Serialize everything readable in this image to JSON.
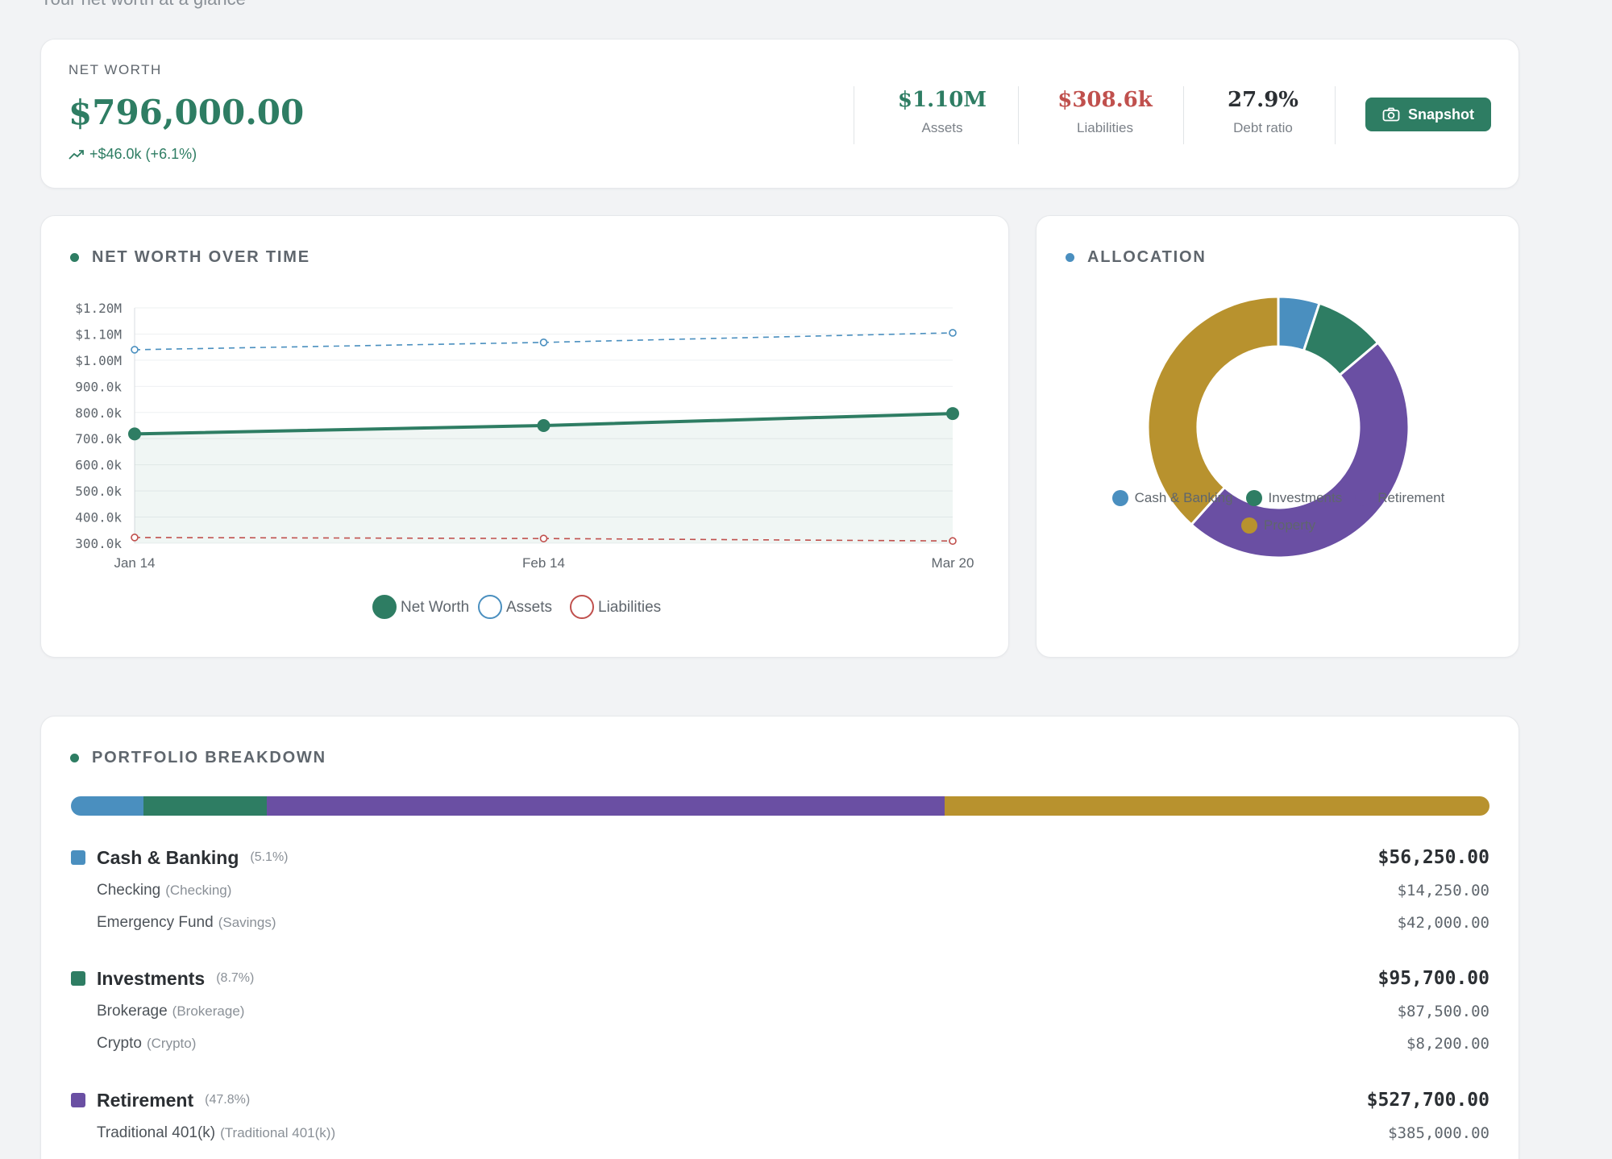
{
  "header": {
    "subtitle": "Your net worth at a glance"
  },
  "summary": {
    "label": "NET WORTH",
    "value": "$796,000.00",
    "change": "+$46.0k (+6.1%)",
    "stats": [
      {
        "value": "$1.10M",
        "label": "Assets",
        "color": "#2e7d63"
      },
      {
        "value": "$308.6k",
        "label": "Liabilities",
        "color": "#c0504d"
      },
      {
        "value": "27.9%",
        "label": "Debt ratio",
        "color": "#2b2f33"
      }
    ],
    "snapshot_label": "Snapshot"
  },
  "net_worth_chart": {
    "title": "NET WORTH OVER TIME",
    "legend": [
      "Net Worth",
      "Assets",
      "Liabilities"
    ]
  },
  "allocation": {
    "title": "ALLOCATION",
    "legend": [
      "Cash & Banking",
      "Investments",
      "Retirement",
      "Property"
    ]
  },
  "chart_data": [
    {
      "type": "line",
      "title": "NET WORTH OVER TIME",
      "x": [
        "Jan 14",
        "Feb 14",
        "Mar 20"
      ],
      "yticks": [
        "$1.20M",
        "$1.10M",
        "$1.00M",
        "900.0k",
        "800.0k",
        "700.0k",
        "600.0k",
        "500.0k",
        "400.0k",
        "300.0k"
      ],
      "ylim": [
        300000,
        1200000
      ],
      "series": [
        {
          "name": "Net Worth",
          "values": [
            718000,
            750000,
            796000
          ],
          "color": "#2e7d63"
        },
        {
          "name": "Assets",
          "values": [
            1040000,
            1068000,
            1104600
          ],
          "color": "#4a8fbf"
        },
        {
          "name": "Liabilities",
          "values": [
            322000,
            318000,
            308600
          ],
          "color": "#c0504d"
        }
      ],
      "legend_position": "bottom",
      "grid": true
    },
    {
      "type": "pie",
      "title": "ALLOCATION",
      "categories": [
        "Cash & Banking",
        "Investments",
        "Retirement",
        "Property"
      ],
      "values": [
        5.1,
        8.7,
        47.8,
        38.4
      ],
      "colors": [
        "#4a8fbf",
        "#2e7d63",
        "#6a4fa3",
        "#b8922e"
      ],
      "legend_position": "bottom"
    }
  ],
  "breakdown": {
    "title": "PORTFOLIO BREAKDOWN",
    "groups": [
      {
        "name": "Cash & Banking",
        "pct": "(5.1%)",
        "total": "$56,250.00",
        "color": "#4a8fbf",
        "share": 5.1,
        "accounts": [
          {
            "name": "Checking",
            "type": "(Checking)",
            "value": "$14,250.00"
          },
          {
            "name": "Emergency Fund",
            "type": "(Savings)",
            "value": "$42,000.00"
          }
        ]
      },
      {
        "name": "Investments",
        "pct": "(8.7%)",
        "total": "$95,700.00",
        "color": "#2e7d63",
        "share": 8.7,
        "accounts": [
          {
            "name": "Brokerage",
            "type": "(Brokerage)",
            "value": "$87,500.00"
          },
          {
            "name": "Crypto",
            "type": "(Crypto)",
            "value": "$8,200.00"
          }
        ]
      },
      {
        "name": "Retirement",
        "pct": "(47.8%)",
        "total": "$527,700.00",
        "color": "#6a4fa3",
        "share": 47.8,
        "accounts": [
          {
            "name": "Traditional 401(k)",
            "type": "(Traditional 401(k))",
            "value": "$385,000.00"
          }
        ]
      }
    ],
    "property_share": 38.4,
    "property_color": "#b8922e"
  }
}
